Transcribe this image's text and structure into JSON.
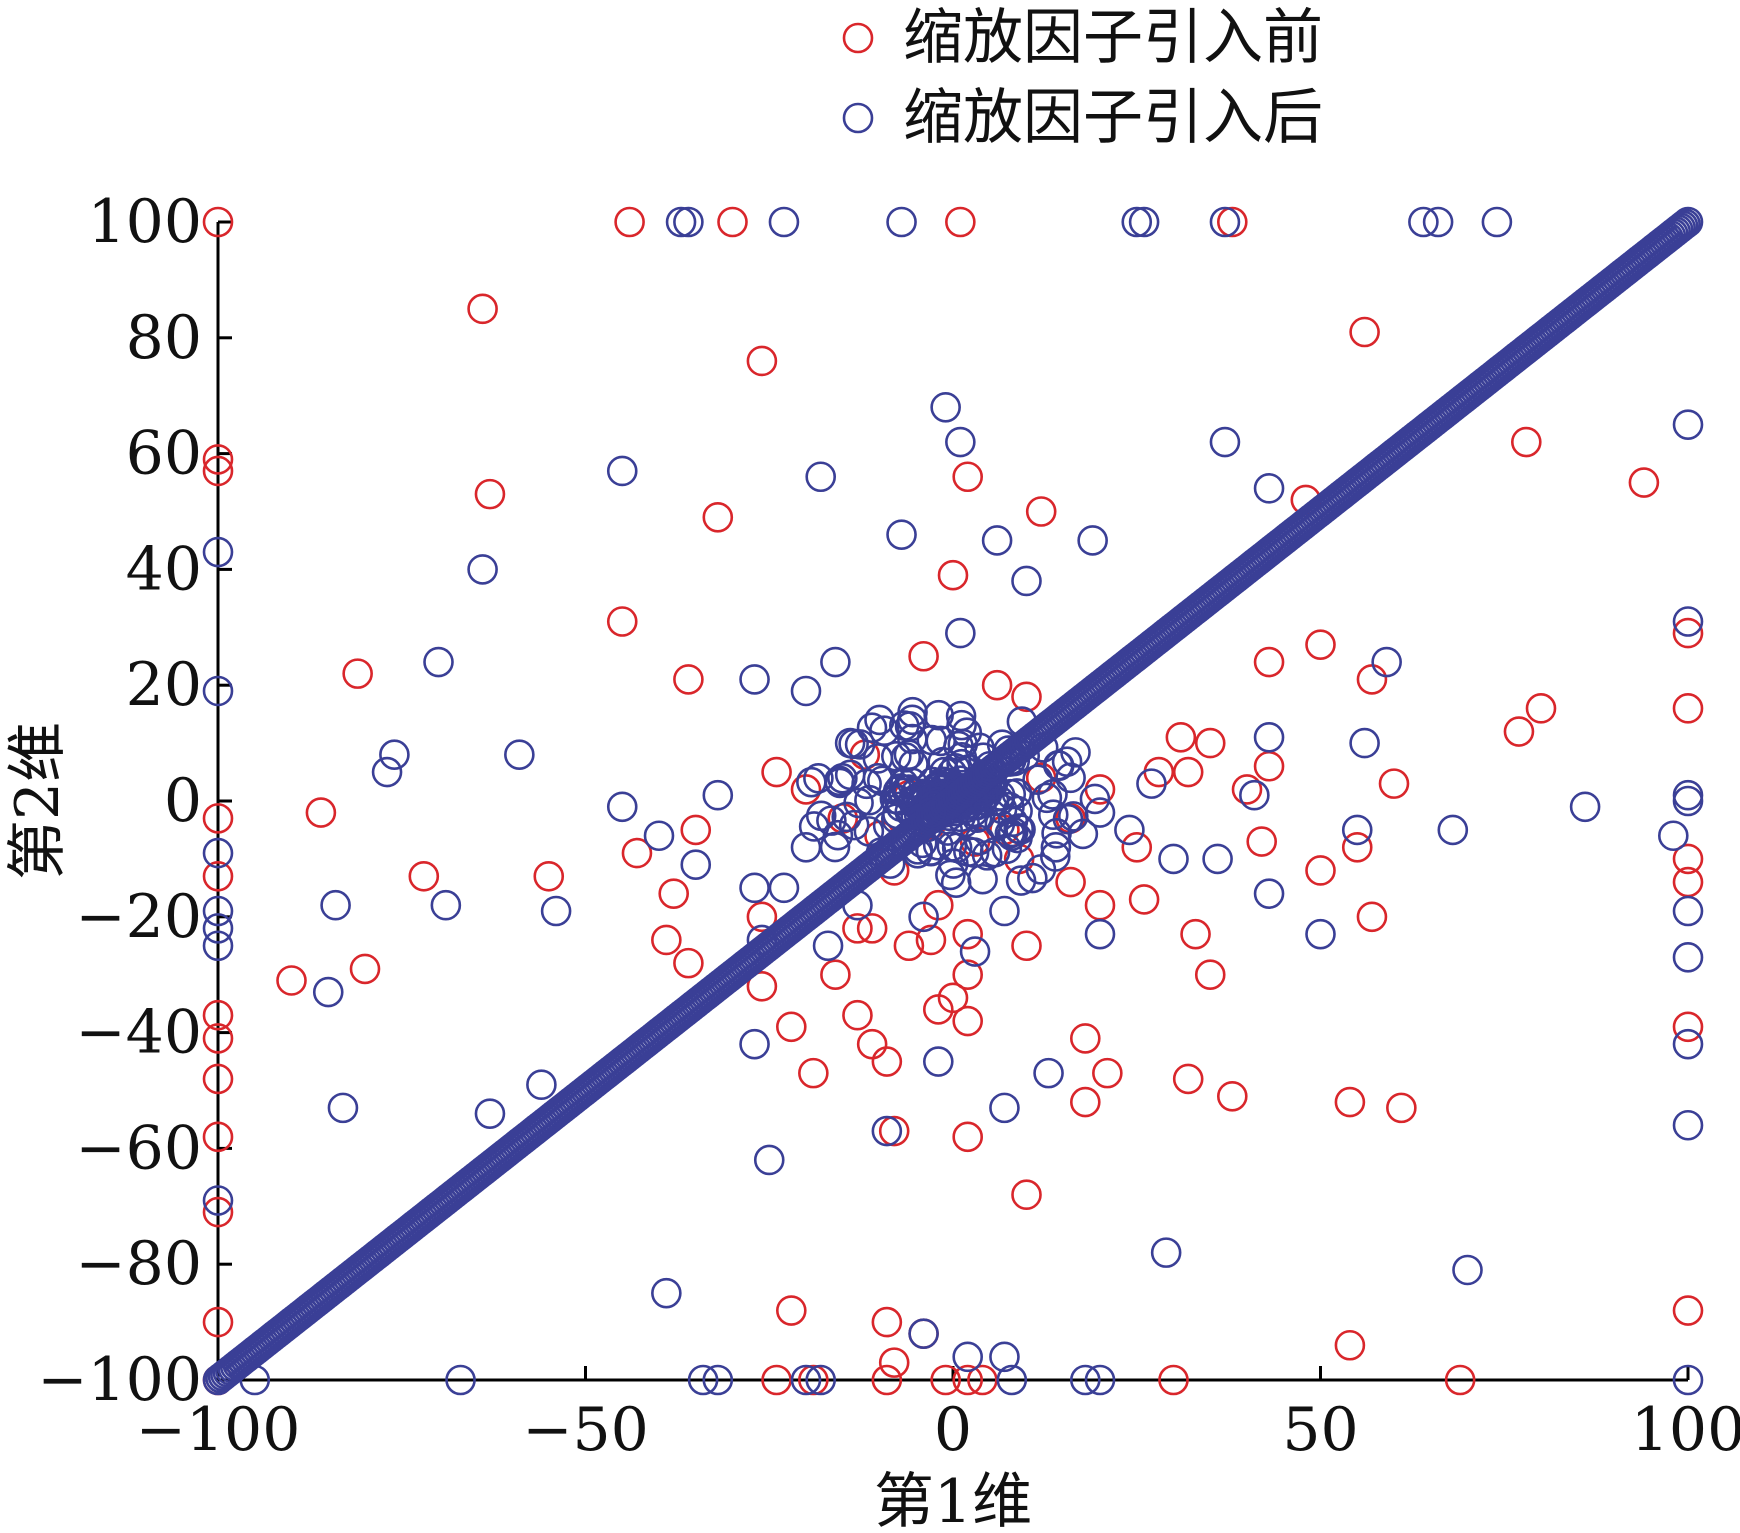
{
  "chart_data": {
    "type": "scatter",
    "xlabel": "第1维",
    "ylabel": "第2维",
    "xlim": [
      -100,
      100
    ],
    "ylim": [
      -100,
      100
    ],
    "xticks": [
      -100,
      -50,
      0,
      50,
      100
    ],
    "yticks": [
      -100,
      -80,
      -60,
      -40,
      -20,
      0,
      20,
      40,
      60,
      80,
      100
    ],
    "xtick_labels": [
      "−100",
      "−50",
      "0",
      "50",
      "100"
    ],
    "ytick_labels": [
      "−100",
      "−80",
      "−60",
      "−40",
      "−20",
      "0",
      "20",
      "40",
      "60",
      "80",
      "100"
    ],
    "grid": false,
    "legend_position": "top",
    "series": [
      {
        "name": "缩放因子引入前",
        "color": "#d9262b",
        "marker": "open-circle",
        "points": [
          [
            -100,
            100
          ],
          [
            -44,
            100
          ],
          [
            -30,
            100
          ],
          [
            1,
            100
          ],
          [
            38,
            100
          ],
          [
            -64,
            85
          ],
          [
            -26,
            76
          ],
          [
            56,
            81
          ],
          [
            78,
            62
          ],
          [
            94,
            55
          ],
          [
            2,
            56
          ],
          [
            -63,
            53
          ],
          [
            -32,
            49
          ],
          [
            12,
            50
          ],
          [
            48,
            52
          ],
          [
            0,
            39
          ],
          [
            -100,
            59
          ],
          [
            -100,
            57
          ],
          [
            -45,
            31
          ],
          [
            -81,
            22
          ],
          [
            -36,
            21
          ],
          [
            -4,
            25
          ],
          [
            50,
            27
          ],
          [
            43,
            24
          ],
          [
            57,
            21
          ],
          [
            100,
            29
          ],
          [
            80,
            16
          ],
          [
            77,
            12
          ],
          [
            100,
            16
          ],
          [
            -86,
            -2
          ],
          [
            -43,
            -9
          ],
          [
            -35,
            -5
          ],
          [
            -24,
            5
          ],
          [
            -20,
            2
          ],
          [
            -15,
            -3
          ],
          [
            -10,
            -6
          ],
          [
            -6,
            1
          ],
          [
            -3,
            -4
          ],
          [
            4,
            3
          ],
          [
            7,
            -5
          ],
          [
            9,
            -10
          ],
          [
            12,
            4
          ],
          [
            16,
            -3
          ],
          [
            20,
            2
          ],
          [
            25,
            -8
          ],
          [
            28,
            5
          ],
          [
            31,
            11
          ],
          [
            35,
            10
          ],
          [
            40,
            2
          ],
          [
            43,
            6
          ],
          [
            42,
            -7
          ],
          [
            50,
            -12
          ],
          [
            55,
            -8
          ],
          [
            60,
            3
          ],
          [
            32,
            5
          ],
          [
            -12,
            8
          ],
          [
            -8,
            -12
          ],
          [
            3,
            -7
          ],
          [
            6,
            20
          ],
          [
            10,
            18
          ],
          [
            -2,
            -18
          ],
          [
            -6,
            -25
          ],
          [
            -13,
            -22
          ],
          [
            2,
            -23
          ],
          [
            26,
            -17
          ],
          [
            16,
            -14
          ],
          [
            -72,
            -13
          ],
          [
            -55,
            -13
          ],
          [
            -38,
            -16
          ],
          [
            -26,
            -20
          ],
          [
            -16,
            -30
          ],
          [
            -11,
            -22
          ],
          [
            -3,
            -24
          ],
          [
            2,
            -30
          ],
          [
            10,
            -25
          ],
          [
            20,
            -18
          ],
          [
            33,
            -23
          ],
          [
            57,
            -20
          ],
          [
            100,
            -10
          ],
          [
            100,
            -14
          ],
          [
            -90,
            -31
          ],
          [
            -80,
            -29
          ],
          [
            -39,
            -24
          ],
          [
            -36,
            -28
          ],
          [
            -26,
            -32
          ],
          [
            -13,
            -37
          ],
          [
            -11,
            -42
          ],
          [
            -9,
            -45
          ],
          [
            -2,
            -36
          ],
          [
            0,
            -34
          ],
          [
            2,
            -38
          ],
          [
            18,
            -41
          ],
          [
            21,
            -47
          ],
          [
            32,
            -48
          ],
          [
            38,
            -51
          ],
          [
            35,
            -30
          ],
          [
            100,
            -39
          ],
          [
            -100,
            -37
          ],
          [
            -100,
            -41
          ],
          [
            -100,
            -48
          ],
          [
            -100,
            -58
          ],
          [
            -100,
            -71
          ],
          [
            -100,
            -90
          ],
          [
            -100,
            -13
          ],
          [
            -100,
            -3
          ],
          [
            -22,
            -39
          ],
          [
            -19,
            -47
          ],
          [
            -8,
            -57
          ],
          [
            2,
            -58
          ],
          [
            10,
            -68
          ],
          [
            18,
            -52
          ],
          [
            54,
            -52
          ],
          [
            61,
            -53
          ],
          [
            -22,
            -88
          ],
          [
            -9,
            -90
          ],
          [
            -4,
            -92
          ],
          [
            -8,
            -97
          ],
          [
            54,
            -94
          ],
          [
            100,
            -88
          ],
          [
            -24,
            -100
          ],
          [
            -19,
            -100
          ],
          [
            -9,
            -100
          ],
          [
            -1,
            -100
          ],
          [
            2,
            -100
          ],
          [
            4,
            -100
          ],
          [
            30,
            -100
          ],
          [
            69,
            -100
          ],
          [
            -100,
            -100
          ]
        ]
      },
      {
        "name": "缩放因子引入后",
        "color": "#3a3f96",
        "marker": "open-circle",
        "points": [
          [
            -37,
            100
          ],
          [
            -36,
            100
          ],
          [
            -23,
            100
          ],
          [
            -7,
            100
          ],
          [
            25,
            100
          ],
          [
            26,
            100
          ],
          [
            37,
            100
          ],
          [
            64,
            100
          ],
          [
            66,
            100
          ],
          [
            74,
            100
          ],
          [
            -1,
            68
          ],
          [
            1,
            62
          ],
          [
            37,
            62
          ],
          [
            100,
            65
          ],
          [
            -45,
            57
          ],
          [
            -18,
            56
          ],
          [
            43,
            54
          ],
          [
            -7,
            46
          ],
          [
            6,
            45
          ],
          [
            19,
            45
          ],
          [
            10,
            38
          ],
          [
            -100,
            43
          ],
          [
            -64,
            40
          ],
          [
            -70,
            24
          ],
          [
            -16,
            24
          ],
          [
            -27,
            21
          ],
          [
            -20,
            19
          ],
          [
            1,
            29
          ],
          [
            59,
            24
          ],
          [
            100,
            31
          ],
          [
            -100,
            19
          ],
          [
            -76,
            8
          ],
          [
            -59,
            8
          ],
          [
            -77,
            5
          ],
          [
            -45,
            -1
          ],
          [
            -40,
            -6
          ],
          [
            -32,
            1
          ],
          [
            -20,
            -8
          ],
          [
            -14,
            10
          ],
          [
            -10,
            14
          ],
          [
            -6,
            8
          ],
          [
            -3,
            -2
          ],
          [
            5,
            6
          ],
          [
            8,
            -6
          ],
          [
            14,
            -8
          ],
          [
            16,
            4
          ],
          [
            20,
            -2
          ],
          [
            24,
            -5
          ],
          [
            27,
            3
          ],
          [
            30,
            -10
          ],
          [
            41,
            1
          ],
          [
            43,
            11
          ],
          [
            36,
            -10
          ],
          [
            55,
            -5
          ],
          [
            56,
            10
          ],
          [
            68,
            -5
          ],
          [
            86,
            -1
          ],
          [
            98,
            -6
          ],
          [
            100,
            1
          ],
          [
            100,
            0
          ],
          [
            -35,
            -11
          ],
          [
            -27,
            -15
          ],
          [
            -23,
            -15
          ],
          [
            -13,
            -18
          ],
          [
            -4,
            -20
          ],
          [
            7,
            -19
          ],
          [
            -100,
            -22
          ],
          [
            -100,
            -25
          ],
          [
            -100,
            -19
          ],
          [
            -100,
            -9
          ],
          [
            -84,
            -18
          ],
          [
            -69,
            -18
          ],
          [
            -54,
            -19
          ],
          [
            -26,
            -24
          ],
          [
            -17,
            -25
          ],
          [
            3,
            -26
          ],
          [
            20,
            -23
          ],
          [
            43,
            -16
          ],
          [
            50,
            -23
          ],
          [
            100,
            -19
          ],
          [
            100,
            -27
          ],
          [
            100,
            -42
          ],
          [
            100,
            -56
          ],
          [
            -85,
            -33
          ],
          [
            -56,
            -49
          ],
          [
            -63,
            -54
          ],
          [
            -83,
            -53
          ],
          [
            -27,
            -42
          ],
          [
            -2,
            -45
          ],
          [
            13,
            -47
          ],
          [
            7,
            -53
          ],
          [
            -9,
            -57
          ],
          [
            -25,
            -62
          ],
          [
            -100,
            -69
          ],
          [
            29,
            -78
          ],
          [
            70,
            -81
          ],
          [
            -39,
            -85
          ],
          [
            -4,
            -92
          ],
          [
            2,
            -96
          ],
          [
            7,
            -96
          ],
          [
            -95,
            -100
          ],
          [
            -67,
            -100
          ],
          [
            -34,
            -100
          ],
          [
            -32,
            -100
          ],
          [
            -20,
            -100
          ],
          [
            -18,
            -100
          ],
          [
            8,
            -100
          ],
          [
            18,
            -100
          ],
          [
            20,
            -100
          ],
          [
            100,
            -100
          ]
        ],
        "lines": [
          {
            "from": [
              -100,
              -100
            ],
            "to": [
              100,
              100
            ],
            "description_values": "dense chain of circles along y = x"
          }
        ],
        "clusters": [
          {
            "center": [
              0,
              0
            ],
            "x_spread": 20,
            "y_spread": 16,
            "count": 260
          }
        ]
      }
    ]
  }
}
